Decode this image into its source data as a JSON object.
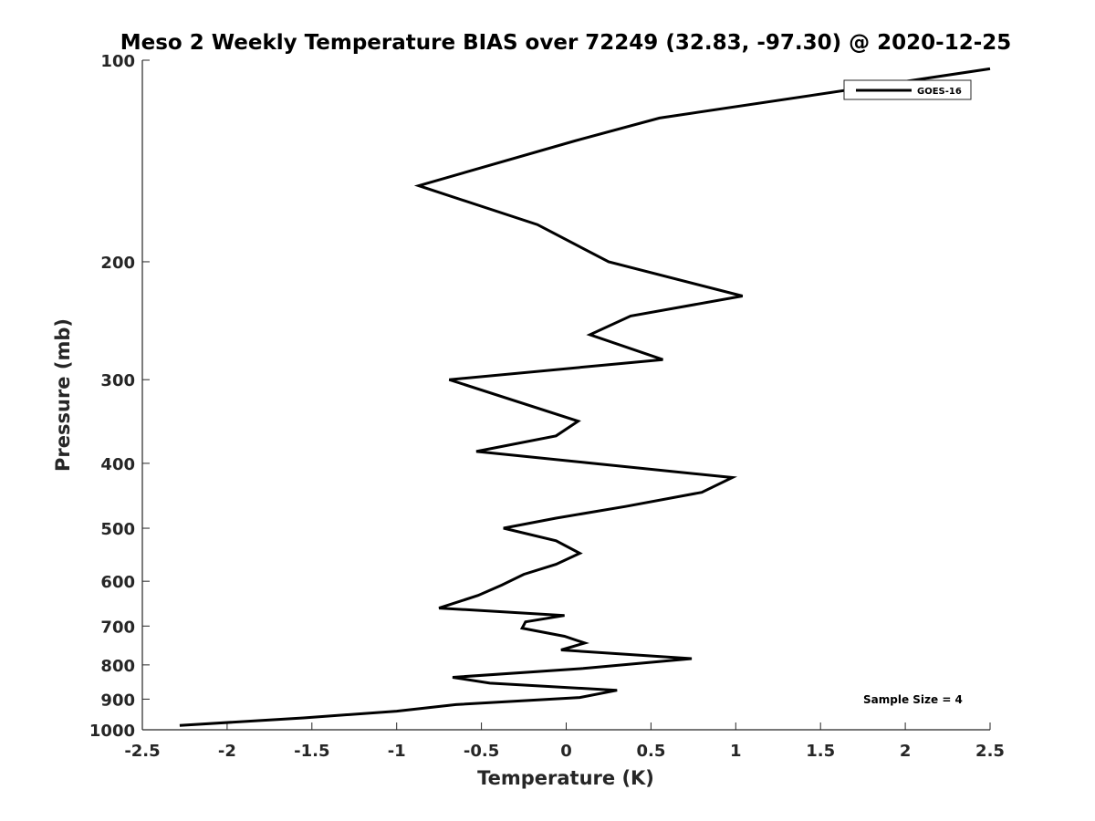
{
  "chart_data": {
    "type": "line",
    "title": "Meso 2 Weekly Temperature BIAS over 72249 (32.83, -97.30) @ 2020-12-25",
    "xlabel": "Temperature (K)",
    "ylabel": "Pressure (mb)",
    "xlim": [
      -2.5,
      2.5
    ],
    "ylim": [
      1000,
      100
    ],
    "y_scale": "log",
    "y_reversed": true,
    "xticks": [
      -2.5,
      -2,
      -1.5,
      -1,
      -0.5,
      0,
      0.5,
      1,
      1.5,
      2,
      2.5
    ],
    "xtick_labels": [
      "-2.5",
      "-2",
      "-1.5",
      "-1",
      "-0.5",
      "0",
      "0.5",
      "1",
      "1.5",
      "2",
      "2.5"
    ],
    "yticks": [
      100,
      200,
      300,
      400,
      500,
      600,
      700,
      800,
      900,
      1000
    ],
    "ytick_labels": [
      "100",
      "200",
      "300",
      "400",
      "500",
      "600",
      "700",
      "800",
      "900",
      "1000"
    ],
    "grid": false,
    "legend_position": "top-right",
    "annotation": "Sample Size = 4",
    "series": [
      {
        "name": "GOES-16",
        "color": "#000000",
        "points": [
          {
            "x": 2.5,
            "y": 103
          },
          {
            "x": 0.55,
            "y": 122
          },
          {
            "x": 0.05,
            "y": 132
          },
          {
            "x": -0.87,
            "y": 154
          },
          {
            "x": -0.17,
            "y": 176
          },
          {
            "x": 0.25,
            "y": 200
          },
          {
            "x": 1.04,
            "y": 225
          },
          {
            "x": 0.38,
            "y": 241
          },
          {
            "x": 0.14,
            "y": 257
          },
          {
            "x": 0.57,
            "y": 280
          },
          {
            "x": -0.69,
            "y": 300
          },
          {
            "x": 0.07,
            "y": 346
          },
          {
            "x": -0.06,
            "y": 364
          },
          {
            "x": -0.53,
            "y": 384
          },
          {
            "x": 0.98,
            "y": 420
          },
          {
            "x": 0.8,
            "y": 442
          },
          {
            "x": 0.35,
            "y": 464
          },
          {
            "x": -0.06,
            "y": 483
          },
          {
            "x": -0.37,
            "y": 500
          },
          {
            "x": -0.06,
            "y": 522
          },
          {
            "x": 0.08,
            "y": 545
          },
          {
            "x": -0.06,
            "y": 566
          },
          {
            "x": -0.25,
            "y": 586
          },
          {
            "x": -0.38,
            "y": 608
          },
          {
            "x": -0.52,
            "y": 630
          },
          {
            "x": -0.75,
            "y": 658
          },
          {
            "x": -0.01,
            "y": 675
          },
          {
            "x": -0.24,
            "y": 690
          },
          {
            "x": -0.26,
            "y": 705
          },
          {
            "x": -0.01,
            "y": 725
          },
          {
            "x": 0.11,
            "y": 742
          },
          {
            "x": -0.03,
            "y": 760
          },
          {
            "x": 0.74,
            "y": 783
          },
          {
            "x": 0.1,
            "y": 810
          },
          {
            "x": -0.67,
            "y": 835
          },
          {
            "x": -0.45,
            "y": 852
          },
          {
            "x": 0.3,
            "y": 873
          },
          {
            "x": 0.08,
            "y": 895
          },
          {
            "x": -0.65,
            "y": 917
          },
          {
            "x": -1.0,
            "y": 938
          },
          {
            "x": -1.55,
            "y": 960
          },
          {
            "x": -2.28,
            "y": 985
          }
        ]
      }
    ]
  }
}
